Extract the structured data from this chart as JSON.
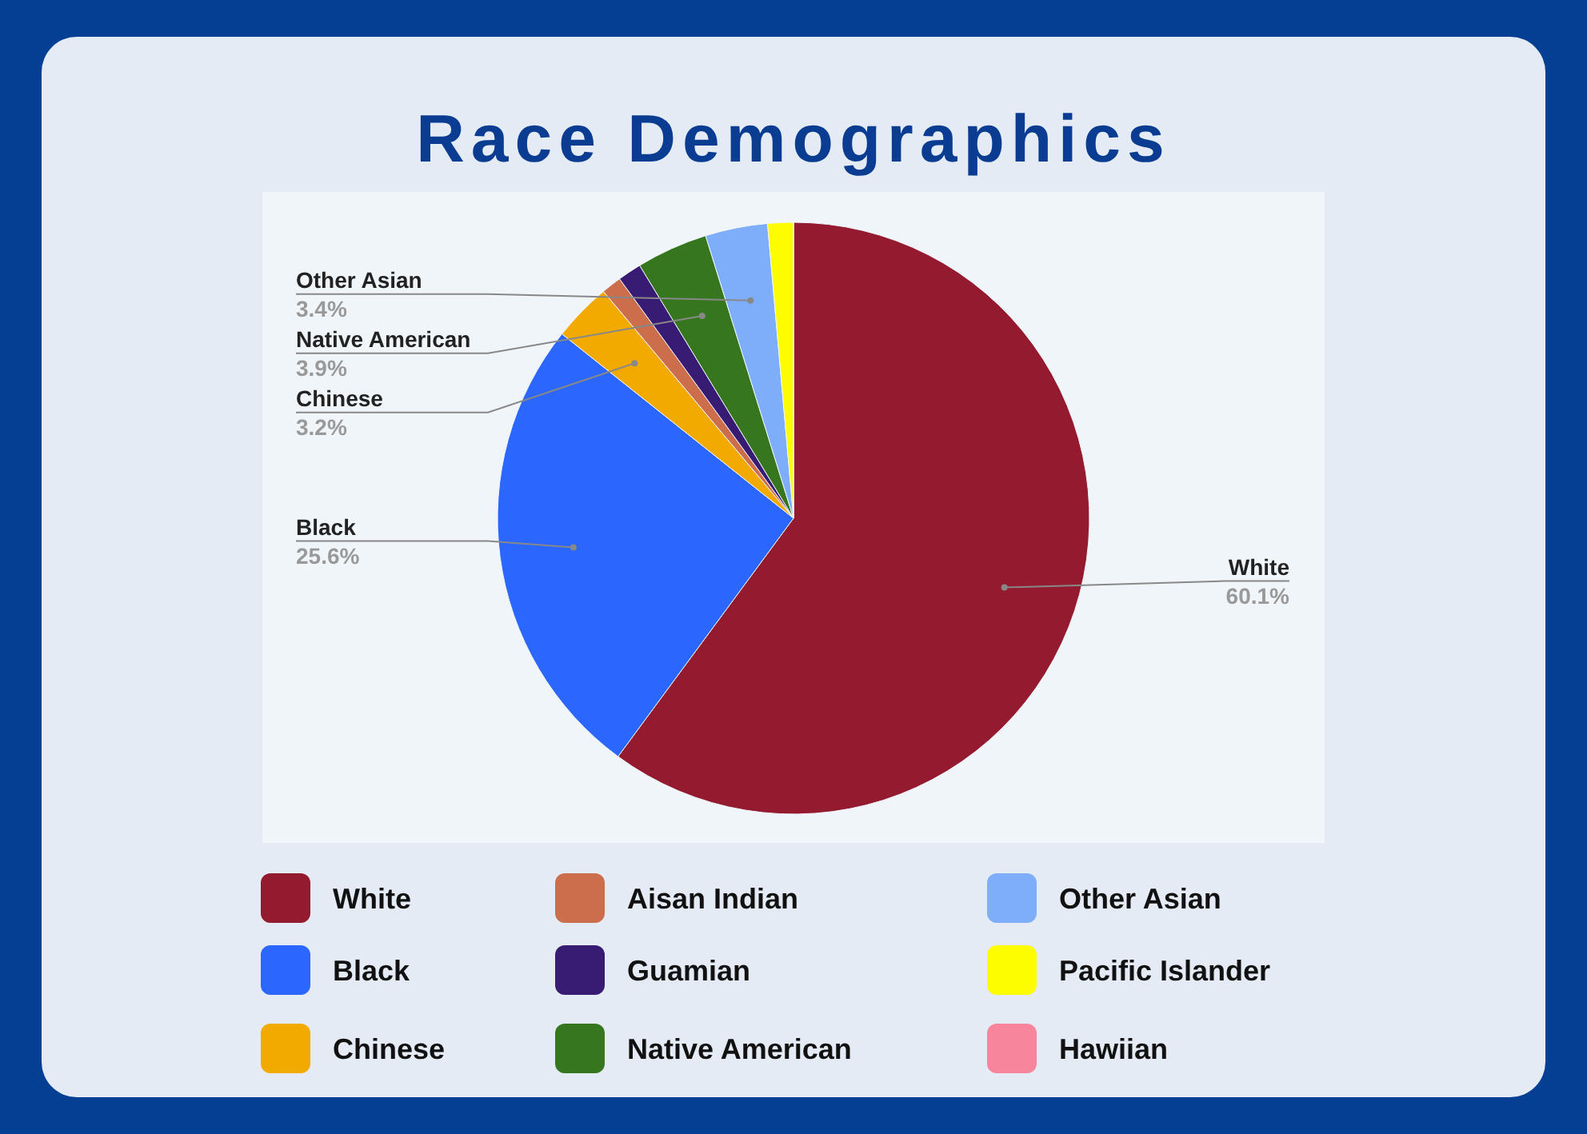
{
  "chart_data": {
    "type": "pie",
    "title": "Race Demographics",
    "categories": [
      "White",
      "Black",
      "Chinese",
      "Aisan Indian",
      "Guamian",
      "Native American",
      "Other Asian",
      "Pacific Islander",
      "Hawiian"
    ],
    "values": [
      60.1,
      25.6,
      3.2,
      1.1,
      1.3,
      3.9,
      3.4,
      1.4,
      0
    ],
    "colors": [
      "#941b2f",
      "#2b67fd",
      "#f2a900",
      "#cc6d4b",
      "#381c74",
      "#36761f",
      "#7eaef9",
      "#fdfd00",
      "#f7869d"
    ],
    "value_labels": [
      "60.1%",
      "25.6%",
      "3.2%",
      null,
      null,
      "3.9%",
      "3.4%",
      null,
      null
    ],
    "legend": "bottom"
  }
}
